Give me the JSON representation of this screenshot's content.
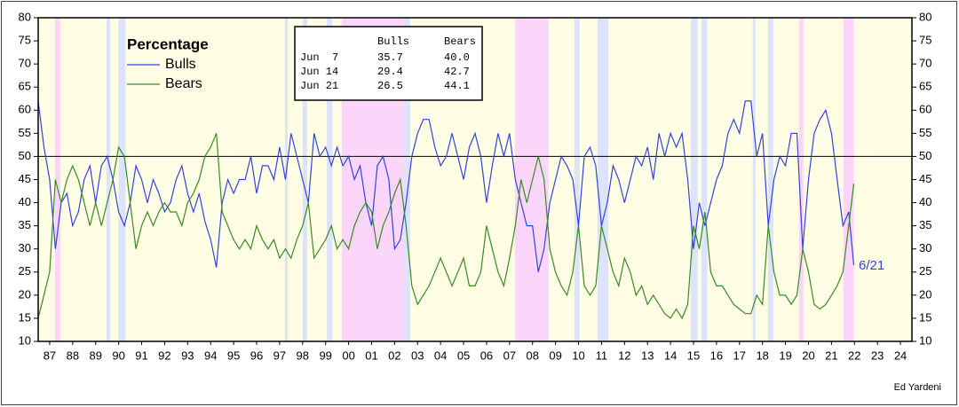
{
  "chart_data": {
    "type": "line",
    "legend_title": "Percentage",
    "annotation": "6/21",
    "credit": "Ed Yardeni",
    "reference_line": 50,
    "xlim": [
      1987,
      2025
    ],
    "xticks": [
      {
        "value": 1987.5,
        "label": "87"
      },
      {
        "value": 1988.5,
        "label": "88"
      },
      {
        "value": 1989.5,
        "label": "89"
      },
      {
        "value": 1990.5,
        "label": "90"
      },
      {
        "value": 1991.5,
        "label": "91"
      },
      {
        "value": 1992.5,
        "label": "92"
      },
      {
        "value": 1993.5,
        "label": "93"
      },
      {
        "value": 1994.5,
        "label": "94"
      },
      {
        "value": 1995.5,
        "label": "95"
      },
      {
        "value": 1996.5,
        "label": "96"
      },
      {
        "value": 1997.5,
        "label": "97"
      },
      {
        "value": 1998.5,
        "label": "98"
      },
      {
        "value": 1999.5,
        "label": "99"
      },
      {
        "value": 2000.5,
        "label": "00"
      },
      {
        "value": 2001.5,
        "label": "01"
      },
      {
        "value": 2002.5,
        "label": "02"
      },
      {
        "value": 2003.5,
        "label": "03"
      },
      {
        "value": 2004.5,
        "label": "04"
      },
      {
        "value": 2005.5,
        "label": "05"
      },
      {
        "value": 2006.5,
        "label": "06"
      },
      {
        "value": 2007.5,
        "label": "07"
      },
      {
        "value": 2008.5,
        "label": "08"
      },
      {
        "value": 2009.5,
        "label": "09"
      },
      {
        "value": 2010.5,
        "label": "10"
      },
      {
        "value": 2011.5,
        "label": "11"
      },
      {
        "value": 2012.5,
        "label": "12"
      },
      {
        "value": 2013.5,
        "label": "13"
      },
      {
        "value": 2014.5,
        "label": "14"
      },
      {
        "value": 2015.5,
        "label": "15"
      },
      {
        "value": 2016.5,
        "label": "16"
      },
      {
        "value": 2017.5,
        "label": "17"
      },
      {
        "value": 2018.5,
        "label": "18"
      },
      {
        "value": 2019.5,
        "label": "19"
      },
      {
        "value": 2020.5,
        "label": "20"
      },
      {
        "value": 2021.5,
        "label": "21"
      },
      {
        "value": 2022.5,
        "label": "22"
      },
      {
        "value": 2023.5,
        "label": "23"
      },
      {
        "value": 2024.5,
        "label": "24"
      }
    ],
    "ylim": [
      10,
      80
    ],
    "yticks": [
      10,
      15,
      20,
      25,
      30,
      35,
      40,
      45,
      50,
      55,
      60,
      65,
      70,
      75,
      80
    ],
    "y2lim": [
      10,
      80
    ],
    "y2ticks": [
      10,
      15,
      20,
      25,
      30,
      35,
      40,
      45,
      50,
      55,
      60,
      65,
      70,
      75,
      80
    ],
    "background": "#fffde3",
    "shaded_regions": [
      {
        "start": 1987.73,
        "end": 1987.97,
        "color": "#fbd6fa"
      },
      {
        "start": 2000.2,
        "end": 2002.9,
        "color": "#fbd6fa"
      },
      {
        "start": 2007.73,
        "end": 2009.2,
        "color": "#fbd6fa"
      },
      {
        "start": 2020.09,
        "end": 2020.28,
        "color": "#fbd6fa"
      },
      {
        "start": 2022.02,
        "end": 2022.48,
        "color": "#fbd6fa"
      },
      {
        "start": 1989.97,
        "end": 1990.13,
        "color": "#dde3fb"
      },
      {
        "start": 1990.5,
        "end": 1990.8,
        "color": "#dde3fb"
      },
      {
        "start": 1997.73,
        "end": 1997.85,
        "color": "#dde3fb"
      },
      {
        "start": 1998.5,
        "end": 1998.7,
        "color": "#dde3fb"
      },
      {
        "start": 1999.55,
        "end": 1999.8,
        "color": "#dde3fb"
      },
      {
        "start": 2002.9,
        "end": 2003.18,
        "color": "#dde3fb"
      },
      {
        "start": 2010.32,
        "end": 2010.55,
        "color": "#dde3fb"
      },
      {
        "start": 2011.32,
        "end": 2011.79,
        "color": "#dde3fb"
      },
      {
        "start": 2015.38,
        "end": 2015.69,
        "color": "#dde3fb"
      },
      {
        "start": 2015.84,
        "end": 2016.1,
        "color": "#dde3fb"
      },
      {
        "start": 2018.08,
        "end": 2018.2,
        "color": "#dde3fb"
      },
      {
        "start": 2018.74,
        "end": 2018.97,
        "color": "#dde3fb"
      }
    ],
    "table": {
      "header": [
        "Bulls",
        "Bears"
      ],
      "rows": [
        [
          "Jun  7",
          "35.7",
          "40.0"
        ],
        [
          "Jun 14",
          "29.4",
          "42.7"
        ],
        [
          "Jun 21",
          "26.5",
          "44.1"
        ]
      ]
    },
    "x": [
      1987,
      1987.25,
      1987.5,
      1987.75,
      1988,
      1988.25,
      1988.5,
      1988.75,
      1989,
      1989.25,
      1989.5,
      1989.75,
      1990,
      1990.25,
      1990.5,
      1990.75,
      1991,
      1991.25,
      1991.5,
      1991.75,
      1992,
      1992.25,
      1992.5,
      1992.75,
      1993,
      1993.25,
      1993.5,
      1993.75,
      1994,
      1994.25,
      1994.5,
      1994.75,
      1995,
      1995.25,
      1995.5,
      1995.75,
      1996,
      1996.25,
      1996.5,
      1996.75,
      1997,
      1997.25,
      1997.5,
      1997.75,
      1998,
      1998.25,
      1998.5,
      1998.75,
      1999,
      1999.25,
      1999.5,
      1999.75,
      2000,
      2000.25,
      2000.5,
      2000.75,
      2001,
      2001.25,
      2001.5,
      2001.75,
      2002,
      2002.25,
      2002.5,
      2002.75,
      2003,
      2003.25,
      2003.5,
      2003.75,
      2004,
      2004.25,
      2004.5,
      2004.75,
      2005,
      2005.25,
      2005.5,
      2005.75,
      2006,
      2006.25,
      2006.5,
      2006.75,
      2007,
      2007.25,
      2007.5,
      2007.75,
      2008,
      2008.25,
      2008.5,
      2008.75,
      2009,
      2009.25,
      2009.5,
      2009.75,
      2010,
      2010.25,
      2010.5,
      2010.75,
      2011,
      2011.25,
      2011.5,
      2011.75,
      2012,
      2012.25,
      2012.5,
      2012.75,
      2013,
      2013.25,
      2013.5,
      2013.75,
      2014,
      2014.25,
      2014.5,
      2014.75,
      2015,
      2015.25,
      2015.5,
      2015.75,
      2016,
      2016.25,
      2016.5,
      2016.75,
      2017,
      2017.25,
      2017.5,
      2017.75,
      2018,
      2018.25,
      2018.5,
      2018.75,
      2019,
      2019.25,
      2019.5,
      2019.75,
      2020,
      2020.25,
      2020.5,
      2020.75,
      2021,
      2021.25,
      2021.5,
      2021.75,
      2022,
      2022.25,
      2022.47
    ],
    "series": [
      {
        "name": "Bulls",
        "color": "#3344dd",
        "values": [
          62,
          52,
          45,
          30,
          40,
          42,
          35,
          38,
          45,
          48,
          40,
          48,
          50,
          45,
          38,
          35,
          40,
          48,
          45,
          40,
          45,
          42,
          38,
          40,
          45,
          48,
          42,
          38,
          42,
          36,
          32,
          26,
          40,
          45,
          42,
          45,
          45,
          50,
          42,
          48,
          48,
          45,
          52,
          45,
          55,
          50,
          45,
          40,
          55,
          50,
          52,
          48,
          52,
          48,
          50,
          45,
          48,
          40,
          35,
          48,
          50,
          45,
          30,
          32,
          40,
          50,
          55,
          58,
          58,
          52,
          48,
          50,
          55,
          50,
          45,
          52,
          55,
          50,
          40,
          48,
          55,
          50,
          55,
          45,
          40,
          35,
          35,
          25,
          30,
          40,
          45,
          50,
          48,
          45,
          35,
          50,
          52,
          48,
          35,
          40,
          48,
          45,
          40,
          45,
          50,
          48,
          52,
          45,
          55,
          50,
          55,
          52,
          55,
          45,
          30,
          40,
          35,
          40,
          45,
          48,
          55,
          58,
          55,
          62,
          62,
          50,
          55,
          35,
          45,
          50,
          48,
          55,
          55,
          30,
          45,
          55,
          58,
          60,
          55,
          45,
          35,
          38,
          26.5
        ]
      },
      {
        "name": "Bears",
        "color": "#3a8a24",
        "values": [
          15,
          20,
          25,
          45,
          40,
          45,
          48,
          45,
          40,
          35,
          40,
          35,
          40,
          45,
          52,
          50,
          40,
          30,
          35,
          38,
          35,
          38,
          40,
          38,
          38,
          35,
          40,
          42,
          45,
          50,
          52,
          55,
          38,
          35,
          32,
          30,
          32,
          30,
          35,
          32,
          30,
          32,
          28,
          30,
          28,
          32,
          35,
          40,
          28,
          30,
          32,
          35,
          30,
          32,
          30,
          35,
          38,
          40,
          38,
          30,
          35,
          38,
          42,
          45,
          35,
          22,
          18,
          20,
          22,
          25,
          28,
          25,
          22,
          25,
          28,
          22,
          22,
          25,
          35,
          30,
          25,
          22,
          28,
          35,
          45,
          40,
          45,
          50,
          45,
          30,
          25,
          22,
          20,
          25,
          35,
          22,
          20,
          22,
          35,
          30,
          25,
          22,
          28,
          25,
          20,
          22,
          18,
          20,
          18,
          16,
          15,
          17,
          15,
          18,
          35,
          30,
          38,
          25,
          22,
          22,
          20,
          18,
          17,
          16,
          16,
          20,
          18,
          35,
          25,
          20,
          20,
          18,
          20,
          30,
          25,
          18,
          17,
          18,
          20,
          22,
          25,
          35,
          44.1
        ]
      }
    ]
  }
}
